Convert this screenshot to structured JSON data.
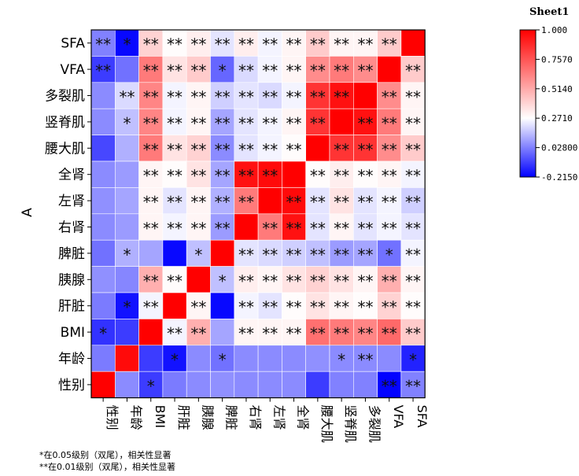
{
  "colorbar": {
    "title": "Sheet1",
    "min": -0.215,
    "max": 1.0,
    "ticks": [
      "1.000",
      "0.7570",
      "0.5140",
      "0.2710",
      "0.02800",
      "-0.2150"
    ],
    "tick_values": [
      1.0,
      0.757,
      0.514,
      0.271,
      0.028,
      -0.215
    ],
    "colors": {
      "low": "#0000ff",
      "mid": "#ffffff",
      "high": "#ff0000"
    }
  },
  "footnotes": {
    "single": "*在0.05级别（双尾），相关性显著",
    "double": "**在0.01级别（双尾），相关性显著"
  },
  "chart_data": {
    "type": "heatmap",
    "title": "",
    "ylabel": "A",
    "xlabel": "",
    "rows": [
      "SFA",
      "VFA",
      "多裂肌",
      "竖脊肌",
      "腰大肌",
      "全肾",
      "左肾",
      "右肾",
      "脾脏",
      "胰腺",
      "肝脏",
      "BMI",
      "年龄",
      "性别"
    ],
    "columns": [
      "性别",
      "年龄",
      "BMI",
      "肝脏",
      "胰腺",
      "脾脏",
      "右肾",
      "左肾",
      "全肾",
      "腰大肌",
      "竖脊肌",
      "多裂肌",
      "VFA",
      "SFA"
    ],
    "values": [
      [
        0.03,
        -0.2,
        0.4,
        0.28,
        0.32,
        0.22,
        0.32,
        0.25,
        0.3,
        0.42,
        0.3,
        0.3,
        0.42,
        1.0
      ],
      [
        -0.1,
        0.0,
        0.65,
        0.35,
        0.42,
        -0.02,
        0.2,
        0.25,
        0.3,
        0.6,
        0.65,
        0.6,
        1.0,
        0.42
      ],
      [
        0.05,
        0.2,
        0.62,
        0.25,
        0.3,
        0.18,
        0.22,
        0.2,
        0.25,
        0.85,
        0.95,
        1.0,
        0.6,
        0.3
      ],
      [
        0.05,
        0.15,
        0.62,
        0.25,
        0.3,
        0.1,
        0.22,
        0.25,
        0.3,
        0.85,
        1.0,
        0.95,
        0.65,
        0.3
      ],
      [
        -0.08,
        0.12,
        0.65,
        0.35,
        0.4,
        0.05,
        0.22,
        0.25,
        0.28,
        1.0,
        0.85,
        0.85,
        0.6,
        0.42
      ],
      [
        0.05,
        0.08,
        0.3,
        0.28,
        0.35,
        0.1,
        0.95,
        0.97,
        1.0,
        0.28,
        0.32,
        0.28,
        0.3,
        0.25
      ],
      [
        0.06,
        0.1,
        0.3,
        0.22,
        0.3,
        0.12,
        0.65,
        1.0,
        0.97,
        0.22,
        0.35,
        0.22,
        0.25,
        0.18
      ],
      [
        0.05,
        0.08,
        0.3,
        0.25,
        0.3,
        0.08,
        1.0,
        0.65,
        0.95,
        0.22,
        0.3,
        0.22,
        0.25,
        0.22
      ],
      [
        0.0,
        0.12,
        0.1,
        -0.2,
        0.15,
        1.0,
        0.22,
        0.2,
        0.18,
        0.15,
        0.08,
        0.1,
        0.0,
        0.25
      ],
      [
        0.06,
        0.04,
        0.5,
        0.28,
        1.0,
        0.15,
        0.32,
        0.3,
        0.35,
        0.4,
        0.35,
        0.3,
        0.5,
        0.3
      ],
      [
        0.02,
        -0.18,
        0.25,
        1.0,
        0.3,
        -0.2,
        0.25,
        0.22,
        0.28,
        0.35,
        0.3,
        0.28,
        0.4,
        0.28
      ],
      [
        -0.12,
        -0.1,
        1.0,
        0.25,
        0.5,
        0.1,
        0.3,
        0.3,
        0.3,
        0.68,
        0.65,
        0.62,
        0.7,
        0.42
      ],
      [
        0.02,
        0.97,
        -0.1,
        -0.18,
        0.05,
        0.0,
        0.05,
        0.05,
        0.05,
        0.06,
        0.05,
        0.05,
        0.05,
        -0.15
      ],
      [
        1.0,
        0.05,
        -0.1,
        0.02,
        0.05,
        0.06,
        0.05,
        0.05,
        0.05,
        -0.1,
        0.03,
        0.03,
        -0.21,
        0.03
      ]
    ],
    "significance": [
      [
        "**",
        "*",
        "**",
        "**",
        "**",
        "**",
        "**",
        "**",
        "**",
        "**",
        "**",
        "**",
        "**",
        ""
      ],
      [
        "**",
        "",
        "**",
        "**",
        "**",
        "*",
        "**",
        "**",
        "**",
        "**",
        "**",
        "**",
        "",
        "**"
      ],
      [
        "",
        "**",
        "**",
        "**",
        "**",
        "**",
        "**",
        "**",
        "**",
        "**",
        "**",
        "",
        "**",
        "**"
      ],
      [
        "",
        "*",
        "**",
        "**",
        "**",
        "**",
        "**",
        "**",
        "**",
        "**",
        "",
        "**",
        "**",
        "**"
      ],
      [
        "",
        "",
        "**",
        "**",
        "**",
        "**",
        "**",
        "**",
        "**",
        "",
        "**",
        "**",
        "**",
        "**"
      ],
      [
        "",
        "",
        "**",
        "**",
        "**",
        "**",
        "**",
        "**",
        "",
        "**",
        "**",
        "**",
        "**",
        "**"
      ],
      [
        "",
        "",
        "**",
        "**",
        "**",
        "**",
        "**",
        "",
        "**",
        "**",
        "**",
        "**",
        "**",
        "**"
      ],
      [
        "",
        "",
        "**",
        "**",
        "**",
        "**",
        "",
        "**",
        "**",
        "**",
        "**",
        "**",
        "**",
        "**"
      ],
      [
        "",
        "*",
        "",
        "",
        "*",
        "",
        "**",
        "**",
        "**",
        "**",
        "**",
        "**",
        "*",
        "**"
      ],
      [
        "",
        "",
        "**",
        "**",
        "",
        "*",
        "**",
        "**",
        "**",
        "**",
        "**",
        "**",
        "**",
        "**"
      ],
      [
        "",
        "*",
        "**",
        "",
        "**",
        "",
        "**",
        "**",
        "**",
        "**",
        "**",
        "**",
        "**",
        "**"
      ],
      [
        "*",
        "",
        "",
        "**",
        "**",
        "",
        "**",
        "**",
        "**",
        "**",
        "**",
        "**",
        "**",
        "**"
      ],
      [
        "",
        "",
        "",
        "*",
        "",
        "*",
        "",
        "",
        "",
        "",
        "*",
        "**",
        "",
        "*"
      ],
      [
        "",
        "",
        "*",
        "",
        "",
        "",
        "",
        "",
        "",
        "",
        "",
        "",
        "**",
        "**"
      ]
    ]
  }
}
